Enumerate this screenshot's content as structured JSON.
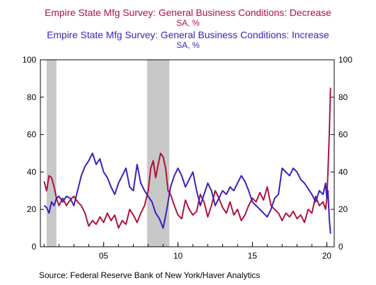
{
  "chart_data": {
    "type": "line",
    "titles": [
      {
        "text": "Empire State Mfg Survey: General Business Conditions: Decrease",
        "color": "#b0103a"
      },
      {
        "text": "SA, %",
        "color": "#b0103a",
        "unit": true
      },
      {
        "text": "Empire State Mfg Survey: General Business Conditions: Increase",
        "color": "#3a1fb8"
      },
      {
        "text": "SA, %",
        "color": "#3a1fb8",
        "unit": true
      }
    ],
    "x_range": [
      2000.75,
      2020.5
    ],
    "ylim": [
      0,
      100
    ],
    "y_ticks": [
      0,
      20,
      40,
      60,
      80,
      100
    ],
    "x_ticks": [
      {
        "value": 2005,
        "label": "05"
      },
      {
        "value": 2010,
        "label": "10"
      },
      {
        "value": 2015,
        "label": "15"
      },
      {
        "value": 2020,
        "label": "20"
      }
    ],
    "recessions": [
      [
        2001.17,
        2001.83
      ],
      [
        2007.92,
        2009.42
      ]
    ],
    "grid": false,
    "series": [
      {
        "name": "Empire State Mfg Survey: General Business Conditions: Decrease",
        "color": "#b0103a",
        "points": [
          [
            2001.0,
            35
          ],
          [
            2001.17,
            30
          ],
          [
            2001.33,
            38
          ],
          [
            2001.5,
            37
          ],
          [
            2001.67,
            32
          ],
          [
            2001.83,
            26
          ],
          [
            2002.0,
            22
          ],
          [
            2002.25,
            26
          ],
          [
            2002.5,
            22
          ],
          [
            2002.75,
            25
          ],
          [
            2003.0,
            27
          ],
          [
            2003.25,
            24
          ],
          [
            2003.5,
            22
          ],
          [
            2003.75,
            18
          ],
          [
            2004.0,
            11
          ],
          [
            2004.25,
            14
          ],
          [
            2004.5,
            12
          ],
          [
            2004.75,
            16
          ],
          [
            2005.0,
            13
          ],
          [
            2005.25,
            18
          ],
          [
            2005.5,
            14
          ],
          [
            2005.75,
            17
          ],
          [
            2006.0,
            10
          ],
          [
            2006.25,
            14
          ],
          [
            2006.5,
            12
          ],
          [
            2006.75,
            20
          ],
          [
            2007.0,
            17
          ],
          [
            2007.25,
            13
          ],
          [
            2007.5,
            18
          ],
          [
            2007.75,
            22
          ],
          [
            2008.0,
            30
          ],
          [
            2008.17,
            42
          ],
          [
            2008.33,
            46
          ],
          [
            2008.5,
            37
          ],
          [
            2008.67,
            44
          ],
          [
            2008.83,
            50
          ],
          [
            2009.0,
            48
          ],
          [
            2009.17,
            42
          ],
          [
            2009.33,
            30
          ],
          [
            2009.5,
            28
          ],
          [
            2009.75,
            22
          ],
          [
            2010.0,
            17
          ],
          [
            2010.25,
            15
          ],
          [
            2010.5,
            25
          ],
          [
            2010.75,
            20
          ],
          [
            2011.0,
            17
          ],
          [
            2011.25,
            19
          ],
          [
            2011.5,
            28
          ],
          [
            2011.75,
            24
          ],
          [
            2012.0,
            16
          ],
          [
            2012.25,
            22
          ],
          [
            2012.5,
            30
          ],
          [
            2012.75,
            26
          ],
          [
            2013.0,
            21
          ],
          [
            2013.25,
            18
          ],
          [
            2013.5,
            24
          ],
          [
            2013.75,
            17
          ],
          [
            2014.0,
            20
          ],
          [
            2014.25,
            14
          ],
          [
            2014.5,
            17
          ],
          [
            2014.75,
            22
          ],
          [
            2015.0,
            26
          ],
          [
            2015.25,
            24
          ],
          [
            2015.5,
            29
          ],
          [
            2015.75,
            25
          ],
          [
            2016.0,
            32
          ],
          [
            2016.25,
            22
          ],
          [
            2016.5,
            20
          ],
          [
            2016.75,
            18
          ],
          [
            2017.0,
            14
          ],
          [
            2017.25,
            18
          ],
          [
            2017.5,
            16
          ],
          [
            2017.75,
            19
          ],
          [
            2018.0,
            15
          ],
          [
            2018.25,
            17
          ],
          [
            2018.5,
            13
          ],
          [
            2018.75,
            20
          ],
          [
            2019.0,
            18
          ],
          [
            2019.25,
            27
          ],
          [
            2019.5,
            22
          ],
          [
            2019.75,
            24
          ],
          [
            2019.92,
            20
          ],
          [
            2020.0,
            25
          ],
          [
            2020.08,
            40
          ],
          [
            2020.17,
            60
          ],
          [
            2020.25,
            85
          ]
        ]
      },
      {
        "name": "Empire State Mfg Survey: General Business Conditions: Increase",
        "color": "#3a1fb8",
        "points": [
          [
            2001.0,
            22
          ],
          [
            2001.17,
            21
          ],
          [
            2001.33,
            18
          ],
          [
            2001.5,
            24
          ],
          [
            2001.67,
            22
          ],
          [
            2001.83,
            26
          ],
          [
            2002.0,
            27
          ],
          [
            2002.25,
            24
          ],
          [
            2002.5,
            27
          ],
          [
            2002.75,
            26
          ],
          [
            2003.0,
            22
          ],
          [
            2003.25,
            30
          ],
          [
            2003.5,
            38
          ],
          [
            2003.75,
            43
          ],
          [
            2004.0,
            46
          ],
          [
            2004.25,
            50
          ],
          [
            2004.5,
            44
          ],
          [
            2004.75,
            47
          ],
          [
            2005.0,
            40
          ],
          [
            2005.25,
            37
          ],
          [
            2005.5,
            32
          ],
          [
            2005.75,
            28
          ],
          [
            2006.0,
            34
          ],
          [
            2006.25,
            38
          ],
          [
            2006.5,
            42
          ],
          [
            2006.75,
            32
          ],
          [
            2007.0,
            30
          ],
          [
            2007.25,
            44
          ],
          [
            2007.5,
            34
          ],
          [
            2007.75,
            30
          ],
          [
            2008.0,
            27
          ],
          [
            2008.25,
            24
          ],
          [
            2008.5,
            18
          ],
          [
            2008.75,
            15
          ],
          [
            2009.0,
            10
          ],
          [
            2009.25,
            20
          ],
          [
            2009.5,
            32
          ],
          [
            2009.75,
            38
          ],
          [
            2010.0,
            42
          ],
          [
            2010.25,
            38
          ],
          [
            2010.5,
            32
          ],
          [
            2010.75,
            36
          ],
          [
            2011.0,
            40
          ],
          [
            2011.25,
            30
          ],
          [
            2011.5,
            22
          ],
          [
            2011.75,
            28
          ],
          [
            2012.0,
            34
          ],
          [
            2012.25,
            30
          ],
          [
            2012.5,
            22
          ],
          [
            2012.75,
            26
          ],
          [
            2013.0,
            30
          ],
          [
            2013.25,
            28
          ],
          [
            2013.5,
            32
          ],
          [
            2013.75,
            30
          ],
          [
            2014.0,
            34
          ],
          [
            2014.25,
            38
          ],
          [
            2014.5,
            35
          ],
          [
            2014.75,
            30
          ],
          [
            2015.0,
            24
          ],
          [
            2015.25,
            22
          ],
          [
            2015.5,
            20
          ],
          [
            2015.75,
            18
          ],
          [
            2016.0,
            16
          ],
          [
            2016.25,
            20
          ],
          [
            2016.5,
            26
          ],
          [
            2016.75,
            28
          ],
          [
            2017.0,
            42
          ],
          [
            2017.25,
            40
          ],
          [
            2017.5,
            38
          ],
          [
            2017.75,
            42
          ],
          [
            2018.0,
            40
          ],
          [
            2018.25,
            36
          ],
          [
            2018.5,
            34
          ],
          [
            2018.75,
            31
          ],
          [
            2019.0,
            28
          ],
          [
            2019.25,
            24
          ],
          [
            2019.5,
            30
          ],
          [
            2019.75,
            28
          ],
          [
            2019.92,
            34
          ],
          [
            2020.0,
            26
          ],
          [
            2020.08,
            30
          ],
          [
            2020.17,
            15
          ],
          [
            2020.25,
            7
          ]
        ]
      }
    ]
  },
  "source": "Source:  Federal Reserve Bank of New York/Haver Analytics"
}
